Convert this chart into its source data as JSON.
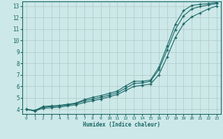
{
  "xlabel": "Humidex (Indice chaleur)",
  "bg_color": "#cce8e8",
  "grid_color": "#b0c8c8",
  "line_color": "#1a6666",
  "xlim": [
    -0.5,
    23.5
  ],
  "ylim": [
    3.6,
    13.4
  ],
  "xticks": [
    0,
    1,
    2,
    3,
    4,
    5,
    6,
    7,
    8,
    9,
    10,
    11,
    12,
    13,
    14,
    15,
    16,
    17,
    18,
    19,
    20,
    21,
    22,
    23
  ],
  "yticks": [
    4,
    5,
    6,
    7,
    8,
    9,
    10,
    11,
    12,
    13
  ],
  "line1_x": [
    0,
    1,
    2,
    3,
    4,
    5,
    6,
    7,
    8,
    9,
    10,
    11,
    12,
    13,
    14,
    15,
    16,
    17,
    18,
    19,
    20,
    21,
    22,
    23
  ],
  "line1_y": [
    4.0,
    3.9,
    4.25,
    4.3,
    4.35,
    4.45,
    4.55,
    4.85,
    5.05,
    5.2,
    5.4,
    5.6,
    6.05,
    6.45,
    6.45,
    6.55,
    7.65,
    9.5,
    11.4,
    12.6,
    13.05,
    13.15,
    13.2,
    13.3
  ],
  "line2_x": [
    0,
    1,
    2,
    3,
    4,
    5,
    6,
    7,
    8,
    9,
    10,
    11,
    12,
    13,
    14,
    15,
    16,
    17,
    18,
    19,
    20,
    21,
    22,
    23
  ],
  "line2_y": [
    4.0,
    3.9,
    4.2,
    4.25,
    4.3,
    4.4,
    4.5,
    4.75,
    4.9,
    5.05,
    5.25,
    5.45,
    5.85,
    6.25,
    6.3,
    6.45,
    7.45,
    9.15,
    10.95,
    12.15,
    12.75,
    12.95,
    13.1,
    13.2
  ],
  "line3_x": [
    0,
    1,
    2,
    3,
    4,
    5,
    6,
    7,
    8,
    9,
    10,
    11,
    12,
    13,
    14,
    15,
    16,
    17,
    18,
    19,
    20,
    21,
    22,
    23
  ],
  "line3_y": [
    4.0,
    3.85,
    4.1,
    4.15,
    4.2,
    4.3,
    4.4,
    4.6,
    4.75,
    4.9,
    5.1,
    5.3,
    5.65,
    6.0,
    6.1,
    6.2,
    7.0,
    8.55,
    10.25,
    11.45,
    12.05,
    12.4,
    12.75,
    13.0
  ]
}
